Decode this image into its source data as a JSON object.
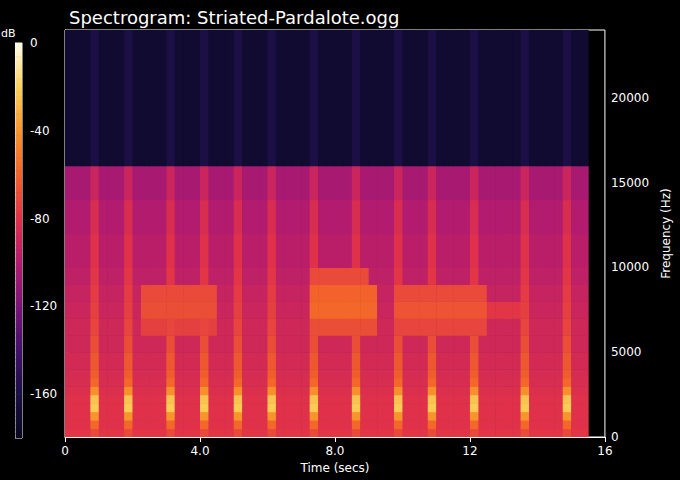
{
  "chart_data": {
    "type": "heatmap",
    "title": "Spectrogram: Striated-Pardalote.ogg",
    "x_label": "Time (secs)",
    "y_label": "Frequency (Hz)",
    "xlim": [
      0,
      16
    ],
    "ylim": [
      0,
      24000
    ],
    "xticks": [
      0,
      {
        "value": 4,
        "label": "4.0"
      },
      {
        "value": 8,
        "label": "8.0"
      },
      12,
      16
    ],
    "yticks": [
      0,
      5000,
      10000,
      15000,
      20000
    ],
    "grid": false,
    "time_edges": [
      0,
      0.25,
      0.5,
      0.75,
      1,
      1.25,
      1.5,
      1.75,
      2,
      2.25,
      2.5,
      2.75,
      3,
      3.25,
      3.5,
      3.75,
      4,
      4.25,
      4.5,
      4.75,
      5,
      5.25,
      5.5,
      5.75,
      6,
      6.25,
      6.5,
      6.75,
      7,
      7.25,
      7.5,
      7.75,
      8,
      8.25,
      8.5,
      8.75,
      9,
      9.25,
      9.5,
      9.75,
      10,
      10.25,
      10.5,
      10.75,
      11,
      11.25,
      11.5,
      11.75,
      12,
      12.25,
      12.5,
      12.75,
      13,
      13.25,
      13.5,
      13.75,
      14,
      14.25,
      14.5,
      14.75,
      15,
      15.25,
      15.5
    ],
    "frequency_edges": [
      0,
      500,
      1000,
      1500,
      2000,
      2500,
      3000,
      3500,
      4000,
      5000,
      6000,
      7000,
      8000,
      9000,
      10000,
      12000,
      14000,
      16000,
      24000
    ],
    "db": [
      [
        -78,
        -78,
        -78,
        -70,
        -78,
        -78,
        -78,
        -70,
        -78,
        -78,
        -78,
        -78,
        -70,
        -78,
        -78,
        -78,
        -70,
        -78,
        -78,
        -78,
        -70,
        -78,
        -78,
        -78,
        -70,
        -78,
        -78,
        -78,
        -78,
        -70,
        -78,
        -78,
        -78,
        -78,
        -70,
        -78,
        -78,
        -78,
        -78,
        -70,
        -78,
        -78,
        -78,
        -70,
        -78,
        -78,
        -78,
        -78,
        -70,
        -78,
        -78,
        -78,
        -78,
        -78,
        -70,
        -78,
        -78,
        -78,
        -78,
        -70,
        -78,
        -78
      ],
      [
        -80,
        -80,
        -80,
        -58,
        -80,
        -80,
        -80,
        -58,
        -80,
        -80,
        -80,
        -80,
        -58,
        -80,
        -80,
        -80,
        -58,
        -80,
        -80,
        -80,
        -58,
        -80,
        -80,
        -80,
        -58,
        -80,
        -80,
        -80,
        -80,
        -58,
        -80,
        -80,
        -80,
        -80,
        -58,
        -80,
        -80,
        -80,
        -80,
        -58,
        -80,
        -80,
        -80,
        -58,
        -80,
        -80,
        -80,
        -80,
        -58,
        -80,
        -80,
        -80,
        -80,
        -80,
        -58,
        -80,
        -80,
        -80,
        -80,
        -58,
        -80,
        -80
      ],
      [
        -80,
        -80,
        -80,
        -40,
        -80,
        -80,
        -80,
        -40,
        -80,
        -80,
        -80,
        -80,
        -40,
        -80,
        -80,
        -80,
        -40,
        -80,
        -80,
        -80,
        -40,
        -80,
        -80,
        -80,
        -40,
        -80,
        -80,
        -80,
        -80,
        -40,
        -80,
        -80,
        -80,
        -80,
        -40,
        -80,
        -80,
        -80,
        -80,
        -40,
        -80,
        -80,
        -80,
        -40,
        -80,
        -80,
        -80,
        -80,
        -40,
        -80,
        -80,
        -80,
        -80,
        -80,
        -40,
        -80,
        -80,
        -80,
        -80,
        -40,
        -80,
        -80
      ],
      [
        -80,
        -80,
        -80,
        -22,
        -80,
        -80,
        -80,
        -22,
        -80,
        -80,
        -80,
        -80,
        -22,
        -80,
        -80,
        -80,
        -22,
        -80,
        -80,
        -80,
        -22,
        -80,
        -80,
        -80,
        -22,
        -80,
        -80,
        -80,
        -80,
        -22,
        -80,
        -80,
        -80,
        -80,
        -22,
        -80,
        -80,
        -80,
        -80,
        -22,
        -80,
        -80,
        -80,
        -22,
        -80,
        -80,
        -80,
        -80,
        -22,
        -80,
        -80,
        -80,
        -80,
        -80,
        -22,
        -80,
        -80,
        -80,
        -80,
        -22,
        -80,
        -80
      ],
      [
        -80,
        -80,
        -80,
        -25,
        -80,
        -80,
        -80,
        -25,
        -80,
        -80,
        -80,
        -80,
        -25,
        -80,
        -80,
        -80,
        -25,
        -80,
        -80,
        -80,
        -25,
        -80,
        -80,
        -80,
        -25,
        -80,
        -80,
        -80,
        -80,
        -25,
        -80,
        -80,
        -80,
        -80,
        -25,
        -80,
        -80,
        -80,
        -80,
        -25,
        -80,
        -80,
        -80,
        -25,
        -80,
        -80,
        -80,
        -80,
        -25,
        -80,
        -80,
        -80,
        -80,
        -80,
        -25,
        -80,
        -80,
        -80,
        -80,
        -25,
        -80,
        -80
      ],
      [
        -82,
        -82,
        -82,
        -42,
        -82,
        -82,
        -82,
        -42,
        -82,
        -82,
        -82,
        -82,
        -42,
        -82,
        -82,
        -82,
        -42,
        -82,
        -82,
        -82,
        -42,
        -82,
        -82,
        -82,
        -42,
        -82,
        -82,
        -82,
        -82,
        -42,
        -82,
        -82,
        -82,
        -82,
        -42,
        -82,
        -82,
        -82,
        -82,
        -42,
        -82,
        -82,
        -82,
        -42,
        -82,
        -82,
        -82,
        -82,
        -42,
        -82,
        -82,
        -82,
        -82,
        -82,
        -42,
        -82,
        -82,
        -82,
        -82,
        -42,
        -82,
        -82
      ],
      [
        -84,
        -84,
        -84,
        -58,
        -84,
        -84,
        -84,
        -58,
        -84,
        -84,
        -84,
        -84,
        -58,
        -84,
        -84,
        -84,
        -58,
        -84,
        -84,
        -84,
        -58,
        -84,
        -84,
        -84,
        -58,
        -84,
        -84,
        -84,
        -84,
        -58,
        -84,
        -84,
        -84,
        -84,
        -58,
        -84,
        -84,
        -84,
        -84,
        -58,
        -84,
        -84,
        -84,
        -58,
        -84,
        -84,
        -84,
        -84,
        -58,
        -84,
        -84,
        -84,
        -84,
        -84,
        -58,
        -84,
        -84,
        -84,
        -84,
        -58,
        -84,
        -84
      ],
      [
        -85,
        -85,
        -85,
        -62,
        -85,
        -85,
        -85,
        -62,
        -85,
        -85,
        -85,
        -85,
        -62,
        -85,
        -85,
        -85,
        -62,
        -85,
        -85,
        -85,
        -62,
        -85,
        -85,
        -85,
        -62,
        -85,
        -85,
        -85,
        -85,
        -62,
        -85,
        -85,
        -85,
        -85,
        -62,
        -85,
        -85,
        -85,
        -85,
        -62,
        -85,
        -85,
        -85,
        -62,
        -85,
        -85,
        -85,
        -85,
        -62,
        -85,
        -85,
        -85,
        -85,
        -85,
        -62,
        -85,
        -85,
        -85,
        -85,
        -62,
        -85,
        -85
      ],
      [
        -86,
        -86,
        -86,
        -64,
        -86,
        -86,
        -86,
        -64,
        -86,
        -86,
        -86,
        -86,
        -64,
        -86,
        -86,
        -86,
        -64,
        -86,
        -86,
        -86,
        -64,
        -86,
        -86,
        -86,
        -64,
        -86,
        -86,
        -86,
        -86,
        -64,
        -86,
        -86,
        -86,
        -86,
        -64,
        -86,
        -86,
        -86,
        -86,
        -64,
        -86,
        -86,
        -86,
        -64,
        -86,
        -86,
        -86,
        -86,
        -64,
        -86,
        -86,
        -86,
        -86,
        -86,
        -64,
        -86,
        -86,
        -86,
        -86,
        -64,
        -86,
        -86
      ],
      [
        -88,
        -88,
        -88,
        -68,
        -88,
        -88,
        -88,
        -68,
        -88,
        -88,
        -88,
        -88,
        -68,
        -88,
        -88,
        -88,
        -68,
        -88,
        -88,
        -88,
        -68,
        -88,
        -88,
        -88,
        -68,
        -88,
        -88,
        -88,
        -88,
        -68,
        -88,
        -88,
        -88,
        -88,
        -68,
        -88,
        -88,
        -88,
        -88,
        -68,
        -88,
        -88,
        -88,
        -68,
        -88,
        -88,
        -88,
        -88,
        -68,
        -88,
        -88,
        -88,
        -88,
        -88,
        -68,
        -88,
        -88,
        -88,
        -88,
        -68,
        -88,
        -88
      ],
      [
        -88,
        -88,
        -88,
        -72,
        -88,
        -88,
        -88,
        -72,
        -88,
        -74,
        -74,
        -74,
        -72,
        -74,
        -74,
        -74,
        -72,
        -74,
        -88,
        -88,
        -72,
        -88,
        -88,
        -88,
        -72,
        -88,
        -88,
        -88,
        -88,
        -68,
        -68,
        -68,
        -68,
        -68,
        -68,
        -68,
        -68,
        -88,
        -88,
        -72,
        -72,
        -72,
        -72,
        -72,
        -72,
        -72,
        -72,
        -72,
        -72,
        -72,
        -88,
        -88,
        -88,
        -88,
        -72,
        -88,
        -88,
        -88,
        -88,
        -72,
        -88,
        -88
      ],
      [
        -90,
        -90,
        -90,
        -74,
        -90,
        -90,
        -90,
        -74,
        -90,
        -68,
        -68,
        -68,
        -68,
        -68,
        -68,
        -68,
        -68,
        -68,
        -90,
        -90,
        -74,
        -90,
        -90,
        -90,
        -74,
        -90,
        -90,
        -90,
        -90,
        -58,
        -58,
        -58,
        -58,
        -58,
        -58,
        -58,
        -58,
        -90,
        -90,
        -66,
        -66,
        -66,
        -66,
        -66,
        -66,
        -66,
        -66,
        -66,
        -66,
        -66,
        -78,
        -78,
        -78,
        -78,
        -74,
        -90,
        -90,
        -90,
        -90,
        -74,
        -90,
        -90
      ],
      [
        -92,
        -92,
        -92,
        -76,
        -92,
        -92,
        -92,
        -76,
        -92,
        -70,
        -70,
        -70,
        -70,
        -70,
        -70,
        -70,
        -70,
        -70,
        -92,
        -92,
        -76,
        -92,
        -92,
        -92,
        -76,
        -92,
        -92,
        -92,
        -92,
        -60,
        -60,
        -60,
        -60,
        -60,
        -60,
        -60,
        -60,
        -92,
        -92,
        -70,
        -70,
        -70,
        -70,
        -70,
        -70,
        -70,
        -70,
        -70,
        -70,
        -70,
        -92,
        -92,
        -92,
        -92,
        -76,
        -92,
        -92,
        -92,
        -92,
        -76,
        -92,
        -92
      ],
      [
        -95,
        -95,
        -95,
        -78,
        -95,
        -95,
        -95,
        -78,
        -95,
        -95,
        -95,
        -95,
        -78,
        -95,
        -95,
        -95,
        -78,
        -95,
        -95,
        -95,
        -78,
        -95,
        -95,
        -95,
        -78,
        -95,
        -95,
        -95,
        -95,
        -70,
        -70,
        -70,
        -70,
        -70,
        -70,
        -70,
        -95,
        -95,
        -95,
        -78,
        -95,
        -95,
        -95,
        -78,
        -95,
        -95,
        -95,
        -95,
        -78,
        -95,
        -95,
        -95,
        -95,
        -95,
        -78,
        -95,
        -95,
        -95,
        -95,
        -78,
        -95,
        -95
      ],
      [
        -97,
        -97,
        -97,
        -80,
        -97,
        -97,
        -97,
        -80,
        -97,
        -97,
        -97,
        -97,
        -80,
        -97,
        -97,
        -97,
        -80,
        -97,
        -97,
        -97,
        -80,
        -97,
        -97,
        -97,
        -80,
        -97,
        -97,
        -97,
        -97,
        -80,
        -97,
        -97,
        -97,
        -97,
        -80,
        -97,
        -97,
        -97,
        -97,
        -80,
        -97,
        -97,
        -97,
        -80,
        -97,
        -97,
        -97,
        -97,
        -80,
        -97,
        -97,
        -97,
        -97,
        -97,
        -80,
        -97,
        -97,
        -97,
        -97,
        -80,
        -97,
        -97
      ],
      [
        -100,
        -100,
        -100,
        -84,
        -100,
        -100,
        -100,
        -84,
        -100,
        -100,
        -100,
        -100,
        -84,
        -100,
        -100,
        -100,
        -84,
        -100,
        -100,
        -100,
        -84,
        -100,
        -100,
        -100,
        -84,
        -100,
        -100,
        -100,
        -100,
        -84,
        -100,
        -100,
        -100,
        -100,
        -84,
        -100,
        -100,
        -100,
        -100,
        -84,
        -100,
        -100,
        -100,
        -84,
        -100,
        -100,
        -100,
        -100,
        -84,
        -100,
        -100,
        -100,
        -100,
        -100,
        -84,
        -100,
        -100,
        -100,
        -100,
        -84,
        -100,
        -100
      ],
      [
        -104,
        -104,
        -104,
        -90,
        -104,
        -104,
        -104,
        -90,
        -104,
        -104,
        -104,
        -104,
        -90,
        -104,
        -104,
        -104,
        -90,
        -104,
        -104,
        -104,
        -90,
        -104,
        -104,
        -104,
        -90,
        -104,
        -104,
        -104,
        -104,
        -90,
        -104,
        -104,
        -104,
        -104,
        -90,
        -104,
        -104,
        -104,
        -104,
        -90,
        -104,
        -104,
        -104,
        -90,
        -104,
        -104,
        -104,
        -104,
        -90,
        -104,
        -104,
        -104,
        -104,
        -104,
        -90,
        -104,
        -104,
        -104,
        -104,
        -90,
        -104,
        -104
      ],
      [
        -170,
        -170,
        -170,
        -160,
        -170,
        -170,
        -170,
        -160,
        -170,
        -170,
        -170,
        -170,
        -160,
        -170,
        -170,
        -170,
        -160,
        -170,
        -170,
        -170,
        -160,
        -170,
        -170,
        -170,
        -160,
        -170,
        -170,
        -170,
        -170,
        -160,
        -170,
        -170,
        -170,
        -170,
        -160,
        -170,
        -170,
        -170,
        -170,
        -160,
        -170,
        -170,
        -170,
        -160,
        -170,
        -170,
        -170,
        -170,
        -160,
        -170,
        -170,
        -170,
        -170,
        -170,
        -160,
        -170,
        -170,
        -170,
        -170,
        -160,
        -170,
        -170
      ]
    ],
    "colorbar": {
      "label": "dB",
      "range": [
        -180,
        0
      ],
      "ticks": [
        -160,
        -120,
        -80,
        -40,
        0
      ]
    }
  }
}
